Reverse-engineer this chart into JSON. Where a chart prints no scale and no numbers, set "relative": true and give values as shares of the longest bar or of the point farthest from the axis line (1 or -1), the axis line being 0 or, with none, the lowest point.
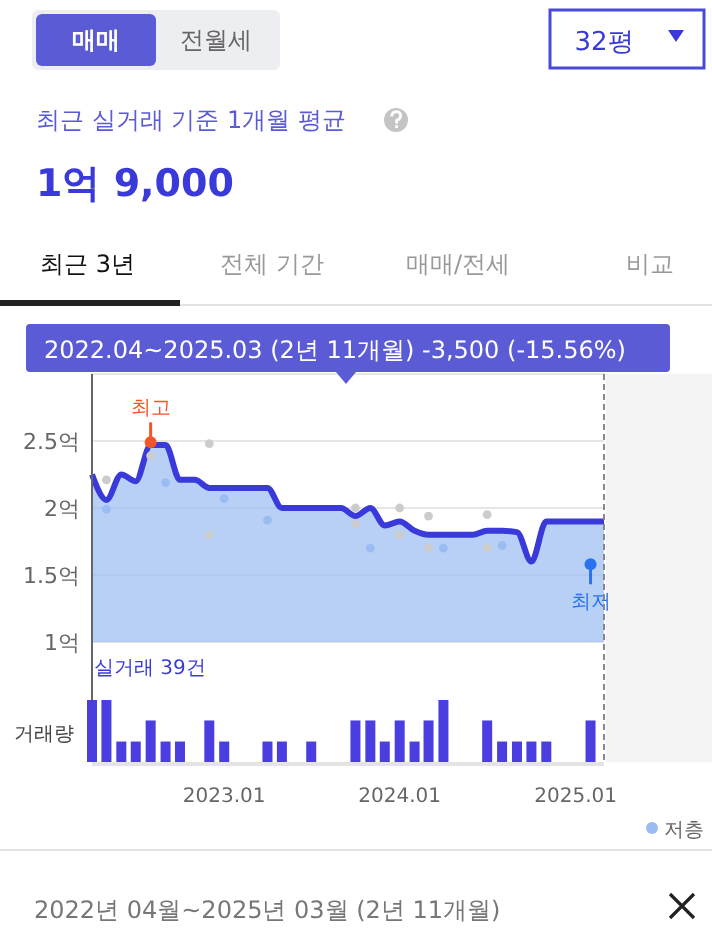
{
  "chart_data": [
    {
      "type": "other",
      "annotations": [
        "매매",
        "전월세",
        "32평",
        "최근 실거래 기준 1개월 평균",
        "1억 9,000",
        "최근 3년",
        "전체 기간",
        "매매/전세",
        "비교"
      ]
    },
    {
      "type": "area",
      "title": "2022.04~2025.03 (2년 11개월)  -3,500 (-15.56%)",
      "xlim": [
        "2022-04",
        "2025-03"
      ],
      "ylim": [
        1,
        3
      ],
      "yticks": [
        {
          "value": 1,
          "label": "1억"
        },
        {
          "value": 1.5,
          "label": "1.5억"
        },
        {
          "value": 2,
          "label": "2억"
        },
        {
          "value": 2.5,
          "label": "2.5억"
        },
        {
          "value": 3,
          "label": null
        }
      ],
      "tick_labels": "y",
      "grid": "y",
      "legend": "bottom right",
      "annotations": [
        {
          "text": "최고",
          "x": "2022-08",
          "y": 2.49
        },
        {
          "text": "최저",
          "x": "2025-02",
          "y": 1.58
        }
      ],
      "series": [
        {
          "type": "area",
          "color": "#3a3adb",
          "x": [
            "2022-04",
            "2022-05",
            "2022-06",
            "2022-07",
            "2022-08",
            "2022-09",
            "2022-10",
            "2022-11",
            "2022-12",
            "2023-01",
            "2023-02",
            "2023-03",
            "2023-04",
            "2023-05",
            "2023-06",
            "2023-07",
            "2023-08",
            "2023-09",
            "2023-10",
            "2023-11",
            "2023-12",
            "2024-01",
            "2024-02",
            "2024-03",
            "2024-04",
            "2024-05",
            "2024-06",
            "2024-07",
            "2024-08",
            "2024-09",
            "2024-10",
            "2024-11",
            "2024-12",
            "2025-01",
            "2025-02",
            "2025-03"
          ],
          "values": [
            2.25,
            2.06,
            2.25,
            2.2,
            2.47,
            2.47,
            2.21,
            2.21,
            2.15,
            2.15,
            2.15,
            2.15,
            2.15,
            2.0,
            2.0,
            2.0,
            2.0,
            2.0,
            1.94,
            2.0,
            1.87,
            1.9,
            1.83,
            1.8,
            1.8,
            1.8,
            1.8,
            1.83,
            1.83,
            1.82,
            1.6,
            1.9,
            1.9,
            1.9,
            1.9,
            1.9
          ]
        },
        {
          "type": "scatter",
          "color": "#cccccc",
          "x": [
            "2022-05",
            "2022-08",
            "2022-12",
            "2022-12",
            "2023-10",
            "2023-10",
            "2024-01",
            "2024-01",
            "2024-03",
            "2024-03",
            "2024-07",
            "2024-07"
          ],
          "values": [
            2.21,
            2.39,
            2.48,
            1.8,
            2.0,
            1.88,
            2.0,
            1.8,
            1.94,
            1.7,
            1.95,
            1.7
          ]
        },
        {
          "type": "scatter",
          "name": "저층",
          "color": "#9bbcf2",
          "x": [
            "2022-05",
            "2022-09",
            "2023-01",
            "2023-04",
            "2023-11",
            "2024-04",
            "2024-08",
            "2025-02"
          ],
          "values": [
            1.99,
            2.19,
            2.07,
            1.91,
            1.7,
            1.7,
            1.72,
            1.58
          ]
        }
      ]
    },
    {
      "type": "bar",
      "relative": true,
      "title": "실거래 39건",
      "ylabel": "거래량",
      "color": "#4a3ee0",
      "xlim": [
        "2022-04",
        "2025-03"
      ],
      "xticks": [
        {
          "value": "2023-01",
          "label": "2023.01"
        },
        {
          "value": "2024-01",
          "label": "2024.01"
        },
        {
          "value": "2025-01",
          "label": "2025.01"
        }
      ],
      "tick_labels": "x",
      "annotations": [
        "2022년 04월~2025년 03월 (2년 11개월)"
      ],
      "x": [
        "2022-04",
        "2022-05",
        "2022-06",
        "2022-07",
        "2022-08",
        "2022-09",
        "2022-10",
        "2022-12",
        "2023-01",
        "2023-04",
        "2023-05",
        "2023-07",
        "2023-10",
        "2023-11",
        "2023-12",
        "2024-01",
        "2024-02",
        "2024-03",
        "2024-04",
        "2024-07",
        "2024-08",
        "2024-09",
        "2024-10",
        "2024-11",
        "2025-02"
      ],
      "values": [
        1,
        1,
        0.33,
        0.33,
        0.67,
        0.33,
        0.33,
        0.67,
        0.33,
        0.33,
        0.33,
        0.33,
        0.67,
        0.67,
        0.33,
        0.67,
        0.33,
        0.67,
        1,
        0.67,
        0.33,
        0.33,
        0.33,
        0.33,
        0.67
      ]
    }
  ]
}
